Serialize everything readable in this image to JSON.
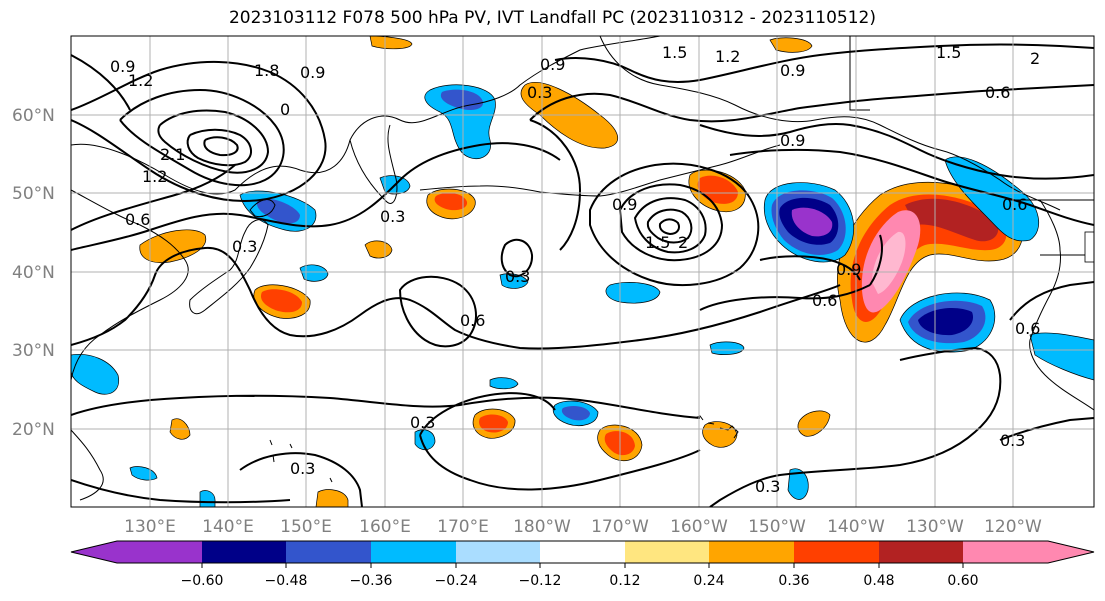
{
  "title": "2023103112 F078 500 hPa PV, IVT Landfall PC (2023110312 - 2023110512)",
  "map": {
    "lat_labels": [
      "60°N",
      "50°N",
      "40°N",
      "30°N",
      "20°N"
    ],
    "lon_labels": [
      "130°E",
      "140°E",
      "150°E",
      "160°E",
      "170°E",
      "180°W",
      "170°W",
      "160°W",
      "150°W",
      "140°W",
      "130°W",
      "120°W"
    ],
    "contour_labels": [
      "0.9",
      "1.2",
      "1.8",
      "0.9",
      "0",
      "2.1",
      "1.2",
      "0.6",
      "0.3",
      "0.3",
      "0.3",
      "0.9",
      "0.9",
      "1.5",
      "2",
      "0.3",
      "0.6",
      "1.5",
      "1.2",
      "0.9",
      "0.6",
      "1.5",
      "2",
      "0.9",
      "0.6",
      "0.9",
      "0.6",
      "0.6",
      "0.3",
      "0.3",
      "0.3",
      "0.3"
    ],
    "colors": {
      "neg_060": "#9933cc",
      "neg_048": "#000088",
      "neg_036": "#3355cc",
      "neg_024": "#00bbff",
      "neg_012": "#aaddff",
      "pos_012": "#ffe680",
      "pos_024": "#ffa500",
      "pos_036": "#ff4000",
      "pos_048": "#b22222",
      "pos_060": "#ff88b0"
    }
  },
  "colorbar": {
    "tick_labels": [
      "−0.60",
      "−0.48",
      "−0.36",
      "−0.24",
      "−0.12",
      "0.12",
      "0.24",
      "0.36",
      "0.48",
      "0.60"
    ],
    "segment_colors": [
      "#9933cc",
      "#000088",
      "#3355cc",
      "#00bbff",
      "#aaddff",
      "#ffffff",
      "#ffe680",
      "#ffa500",
      "#ff4000",
      "#b22222",
      "#ff88b0"
    ]
  }
}
